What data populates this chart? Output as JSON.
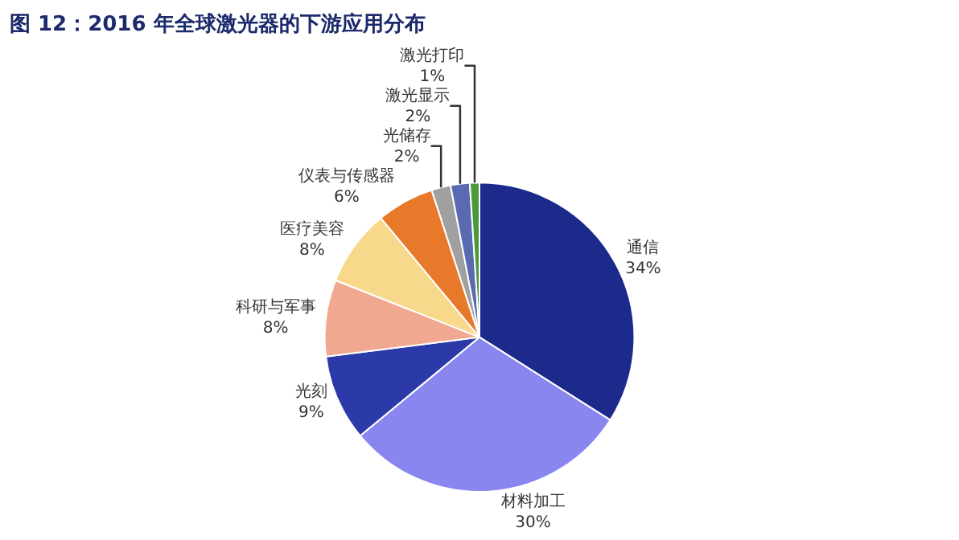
{
  "chart_data": {
    "type": "pie",
    "title": "图 12：2016 年全球激光器的下游应用分布",
    "categories": [
      "通信",
      "材料加工",
      "光刻",
      "科研与军事",
      "医疗美容",
      "仪表与传感器",
      "光储存",
      "激光显示",
      "激光打印"
    ],
    "values": [
      34,
      30,
      9,
      8,
      8,
      6,
      2,
      2,
      1
    ],
    "value_labels": [
      "34%",
      "30%",
      "9%",
      "8%",
      "8%",
      "6%",
      "2%",
      "2%",
      "1%"
    ],
    "colors": [
      "#1c2a8c",
      "#8a86f0",
      "#2b3aa8",
      "#f0a890",
      "#f8d88a",
      "#e8782a",
      "#a0a0a0",
      "#5a6ab0",
      "#4a9a3a"
    ],
    "legend": false
  }
}
